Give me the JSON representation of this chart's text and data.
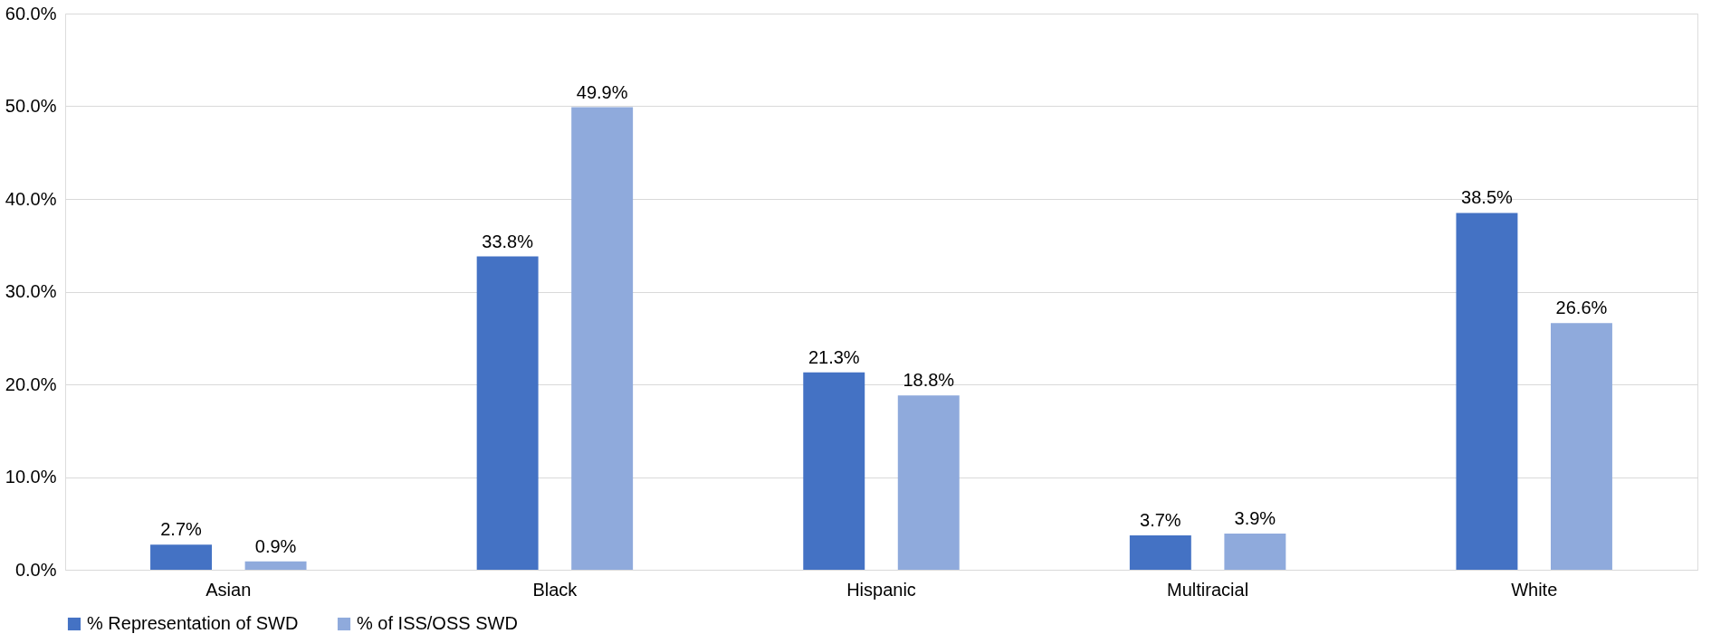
{
  "chart_data": {
    "type": "bar",
    "categories": [
      "Asian",
      "Black",
      "Hispanic",
      "Multiracial",
      "White"
    ],
    "series": [
      {
        "name": "% Representation of SWD",
        "color": "#4472c4",
        "values": [
          2.7,
          33.8,
          21.3,
          3.7,
          38.5
        ],
        "value_labels": [
          "2.7%",
          "33.8%",
          "21.3%",
          "3.7%",
          "38.5%"
        ]
      },
      {
        "name": "% of ISS/OSS SWD",
        "color": "#8faadc",
        "values": [
          0.9,
          49.9,
          18.8,
          3.9,
          26.6
        ],
        "value_labels": [
          "0.9%",
          "49.9%",
          "18.8%",
          "3.9%",
          "26.6%"
        ]
      }
    ],
    "ylim": [
      0,
      60
    ],
    "yticks": [
      {
        "value": 0,
        "label": "0.0%"
      },
      {
        "value": 10,
        "label": "10.0%"
      },
      {
        "value": 20,
        "label": "20.0%"
      },
      {
        "value": 30,
        "label": "30.0%"
      },
      {
        "value": 40,
        "label": "40.0%"
      },
      {
        "value": 50,
        "label": "50.0%"
      },
      {
        "value": 60,
        "label": "60.0%"
      }
    ],
    "grid": "y",
    "legend": "bottom"
  }
}
